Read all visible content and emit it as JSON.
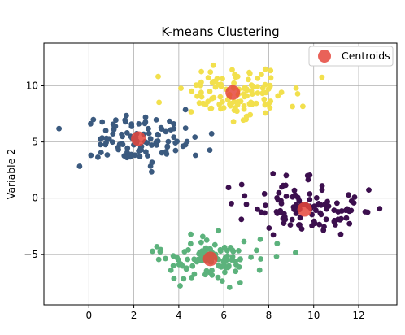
{
  "chart_data": {
    "type": "scatter",
    "title": "K-means Clustering",
    "xlabel": "",
    "ylabel": "Variable 2",
    "xlim": [
      -2,
      13.7
    ],
    "ylim": [
      -9.5,
      13.8
    ],
    "xticks": [
      0,
      2,
      4,
      6,
      8,
      10,
      12
    ],
    "yticks": [
      -5,
      0,
      5,
      10
    ],
    "grid": true,
    "legend": {
      "position": "top-right",
      "entries": [
        "Centroids"
      ]
    },
    "clusters": [
      {
        "color": "#3b5a7f",
        "center": [
          2.2,
          5.2
        ],
        "spread": [
          1.35,
          1.1
        ],
        "n": 110
      },
      {
        "color": "#f2e04d",
        "center": [
          6.4,
          9.4
        ],
        "spread": [
          1.35,
          1.05
        ],
        "n": 115
      },
      {
        "color": "#3c0f4e",
        "center": [
          9.6,
          -1.0
        ],
        "spread": [
          1.3,
          1.15
        ],
        "n": 110
      },
      {
        "color": "#5cb27c",
        "center": [
          5.4,
          -5.4
        ],
        "spread": [
          1.3,
          1.05
        ],
        "n": 110
      }
    ],
    "centroids": {
      "name": "Centroids",
      "color": "#e5473c",
      "x": [
        2.2,
        6.4,
        9.6,
        5.4
      ],
      "y": [
        5.3,
        9.4,
        -1.0,
        -5.4
      ]
    }
  }
}
